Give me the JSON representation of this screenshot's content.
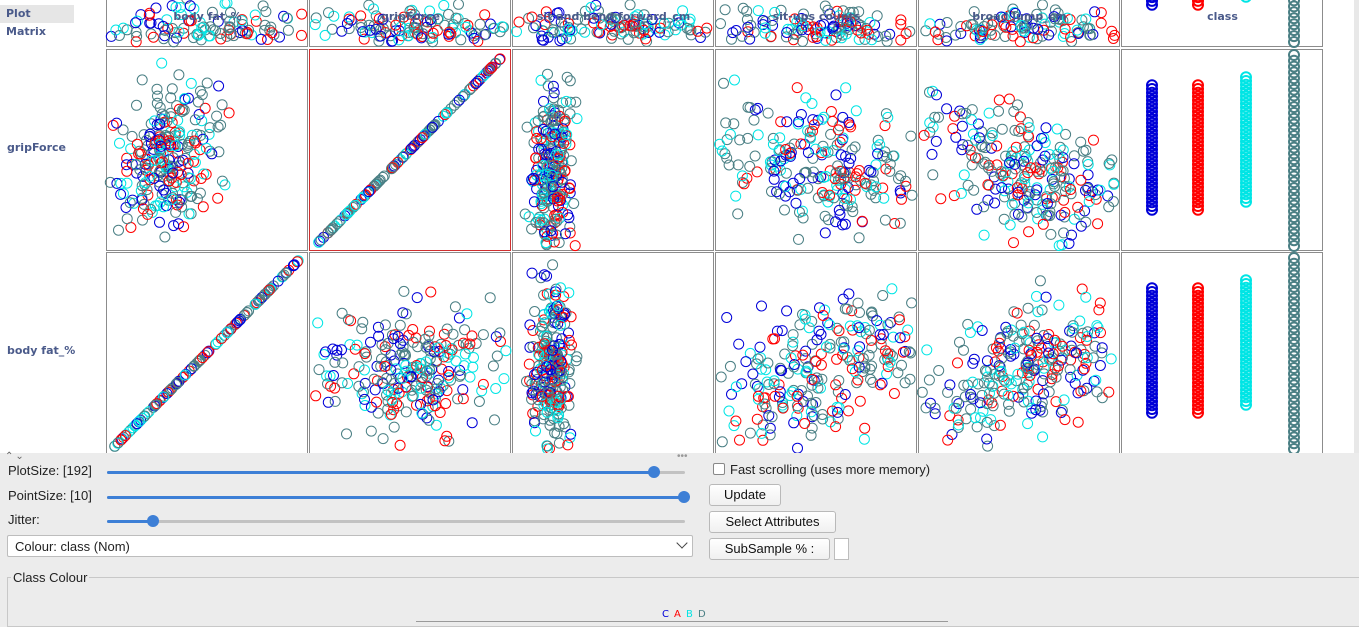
{
  "matrix": {
    "title": "Plot Matrix",
    "column_headers": [
      "body fat_%",
      "gripForce",
      "sit and bend forward_cm",
      "sit-ups counts",
      "broad jump_cm",
      "class"
    ],
    "row_headers": [
      "gripForce",
      "body fat_%"
    ],
    "selected_cell": {
      "row": "gripForce",
      "column": "gripForce"
    }
  },
  "controls": {
    "plot_size_label": "PlotSize: [192]",
    "plot_size_value": 192,
    "point_size_label": "PointSize: [10]",
    "point_size_value": 10,
    "jitter_label": "Jitter:",
    "jitter_fraction": 0.08,
    "colour_select_value": "Colour: class  (Nom)",
    "fast_scrolling_label": "Fast scrolling (uses more memory)",
    "fast_scrolling_checked": false,
    "update_button": "Update",
    "select_attributes_button": "Select Attributes",
    "subsample_button": "SubSample % :"
  },
  "class_colour": {
    "title": "Class Colour",
    "classes": [
      {
        "label": "C",
        "color": "#0000d8"
      },
      {
        "label": "A",
        "color": "#ff0000"
      },
      {
        "label": "B",
        "color": "#00e5e5"
      },
      {
        "label": "D",
        "color": "#4a7f84"
      }
    ]
  },
  "colors": {
    "accent": "#3d7fd6",
    "header_text": "#4a5a8a",
    "selection_border": "#d03030"
  }
}
